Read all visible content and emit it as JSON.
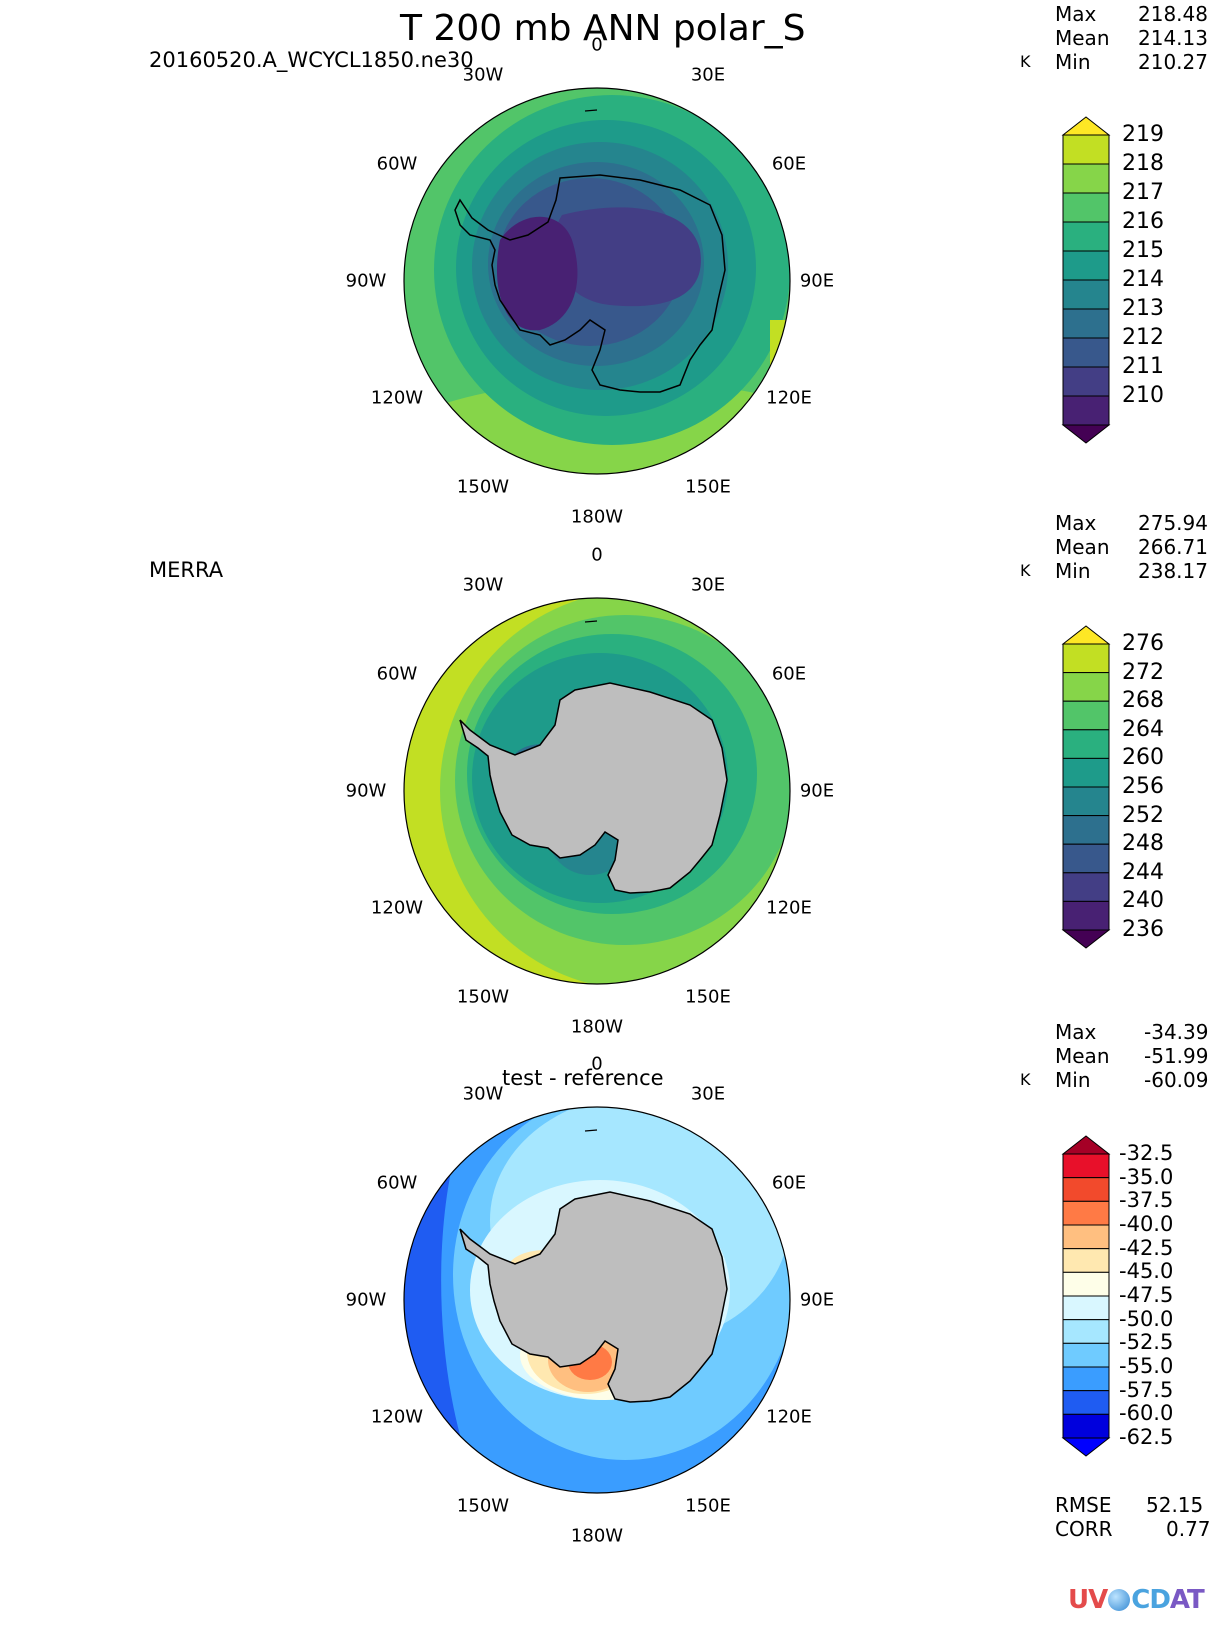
{
  "title": "T 200 mb ANN polar_S",
  "panels": [
    {
      "left_label": "20160520.A_WCYCL1850.ne30",
      "center_label": "",
      "units": "K",
      "stats": [
        {
          "label": "Max",
          "value": "218.48"
        },
        {
          "label": "Mean",
          "value": "214.13"
        },
        {
          "label": "Min",
          "value": "210.27"
        }
      ],
      "colorbar": {
        "labels": [
          "219",
          "218",
          "217",
          "216",
          "215",
          "214",
          "213",
          "212",
          "211",
          "210"
        ],
        "colors": [
          "#fde725",
          "#c2df23",
          "#86d549",
          "#52c569",
          "#2ab07f",
          "#1e9b8a",
          "#25858e",
          "#2d708e",
          "#38588c",
          "#433e85",
          "#482173",
          "#440154"
        ]
      }
    },
    {
      "left_label": "MERRA",
      "center_label": "",
      "units": "K",
      "stats": [
        {
          "label": "Max",
          "value": "275.94"
        },
        {
          "label": "Mean",
          "value": "266.71"
        },
        {
          "label": "Min",
          "value": "238.17"
        }
      ],
      "colorbar": {
        "labels": [
          "276",
          "272",
          "268",
          "264",
          "260",
          "256",
          "252",
          "248",
          "244",
          "240",
          "236"
        ],
        "colors": [
          "#fde725",
          "#c2df23",
          "#86d549",
          "#52c569",
          "#2ab07f",
          "#1e9b8a",
          "#25858e",
          "#2d708e",
          "#38588c",
          "#433e85",
          "#482173",
          "#440154"
        ]
      }
    },
    {
      "left_label": "",
      "center_label": "test - reference",
      "units": "K",
      "stats": [
        {
          "label": "Max",
          "value": "-34.39"
        },
        {
          "label": "Mean",
          "value": "-51.99"
        },
        {
          "label": "Min",
          "value": "-60.09"
        }
      ],
      "colorbar": {
        "labels": [
          "-32.5",
          "-35.0",
          "-37.5",
          "-40.0",
          "-42.5",
          "-45.0",
          "-47.5",
          "-50.0",
          "-52.5",
          "-55.0",
          "-57.5",
          "-60.0",
          "-62.5"
        ],
        "colors": [
          "#a50026",
          "#e8102a",
          "#f24a2c",
          "#ff7a45",
          "#ffbf80",
          "#ffe8b0",
          "#fefee8",
          "#d9f7ff",
          "#a6e7ff",
          "#6fcbff",
          "#3a9dff",
          "#1f5cf2",
          "#0000dd",
          "#0000ff"
        ]
      },
      "rmse_label": "RMSE",
      "rmse_value": "52.15",
      "corr_label": "CORR",
      "corr_value": "0.77"
    }
  ],
  "lon_labels": {
    "n0": "0",
    "n30e": "30E",
    "n60e": "60E",
    "n90e": "90E",
    "n120e": "120E",
    "n150e": "150E",
    "n180": "180W",
    "n150w": "150W",
    "n120w": "120W",
    "n90w": "90W",
    "n60w": "60W",
    "n30w": "30W"
  },
  "logo_text": "UV-CDAT",
  "logo_colors": {
    "uv": "#e44b4b",
    "cd": "#4aa3df",
    "at": "#7a59c4"
  }
}
